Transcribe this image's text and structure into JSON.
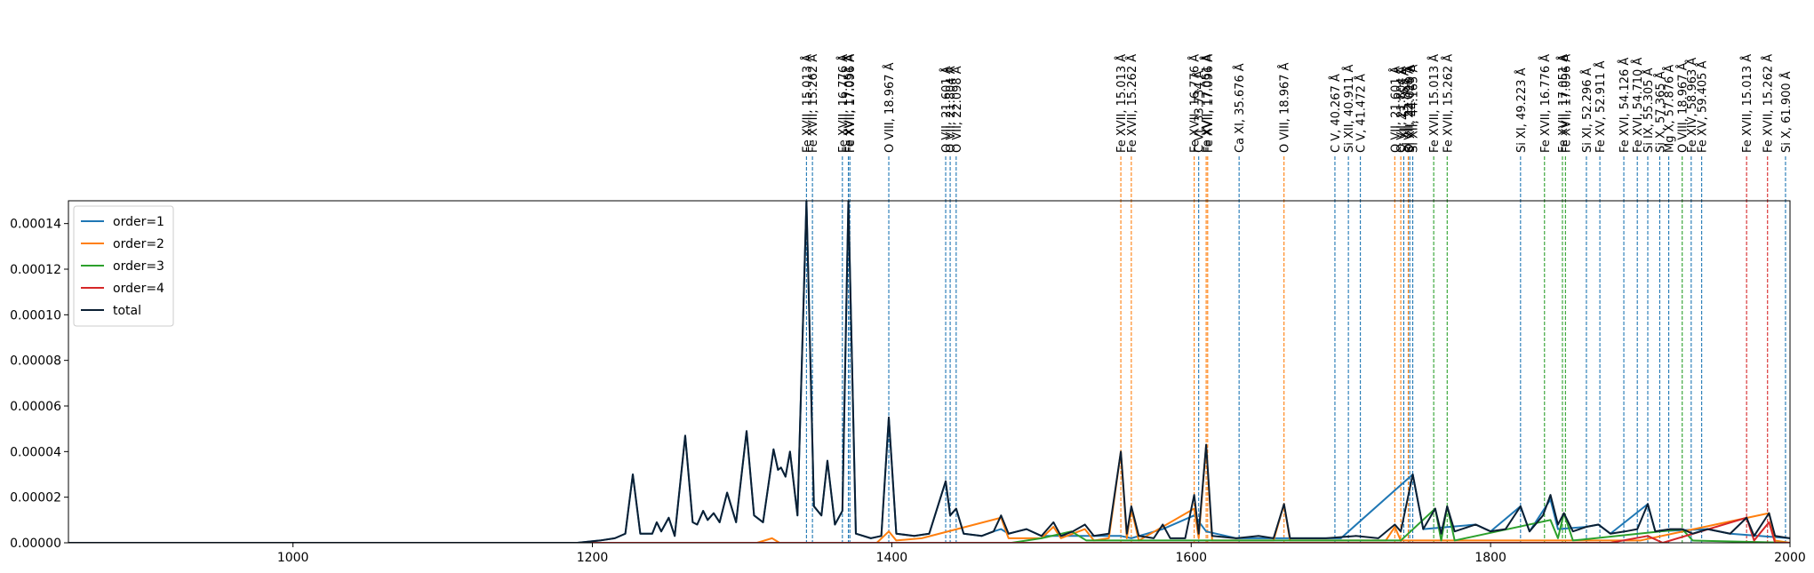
{
  "chart_data": {
    "type": "line",
    "xlim": [
      850,
      2000
    ],
    "xticks": [
      1000,
      1200,
      1400,
      1600,
      1800,
      2000
    ],
    "ylim": [
      0,
      0.00015
    ],
    "yticks": [
      {
        "value": 0,
        "label": "0.00000"
      },
      {
        "value": 2e-05,
        "label": "0.00002"
      },
      {
        "value": 4e-05,
        "label": "0.00004"
      },
      {
        "value": 6e-05,
        "label": "0.00006"
      },
      {
        "value": 8e-05,
        "label": "0.00008"
      },
      {
        "value": 0.0001,
        "label": "0.00010"
      },
      {
        "value": 0.00012,
        "label": "0.00012"
      },
      {
        "value": 0.00014,
        "label": "0.00014"
      }
    ],
    "legend": "upper left",
    "series": [
      {
        "name": "order=1",
        "color": "#1f77b4",
        "x": [
          850,
          1190,
          1205,
          1215,
          1222,
          1227,
          1232,
          1240,
          1243,
          1246,
          1251,
          1255,
          1262,
          1267,
          1270,
          1274,
          1277,
          1281,
          1285,
          1290,
          1296,
          1303,
          1308,
          1314,
          1321,
          1324,
          1326,
          1329,
          1332,
          1337,
          1343,
          1348,
          1353,
          1357,
          1362,
          1367,
          1371,
          1376,
          1386,
          1393,
          1398,
          1403,
          1415,
          1425,
          1436,
          1439,
          1443,
          1448,
          1460,
          1468,
          1473,
          1478,
          1490,
          1500,
          1545,
          1553,
          1560,
          1581,
          1602,
          1610,
          1630,
          1662,
          1700,
          1748,
          1755,
          1790,
          1800,
          1820,
          1826,
          1840,
          1845,
          1864,
          1872,
          1880,
          1905,
          1910,
          1945,
          1960,
          2000
        ],
        "values": [
          0,
          0,
          1e-06,
          2e-06,
          4e-06,
          3e-05,
          4e-06,
          4e-06,
          9e-06,
          5e-06,
          1.1e-05,
          3e-06,
          4.7e-05,
          9e-06,
          8e-06,
          1.4e-05,
          1e-05,
          1.3e-05,
          9e-06,
          2.2e-05,
          9e-06,
          4.9e-05,
          1.2e-05,
          9e-06,
          4.1e-05,
          3.2e-05,
          3.3e-05,
          2.9e-05,
          4e-05,
          1.2e-05,
          0.00015,
          1.6e-05,
          1.2e-05,
          3.6e-05,
          8e-06,
          1.4e-05,
          0.00015,
          4e-06,
          2e-06,
          3e-06,
          5.5e-05,
          4e-06,
          3e-06,
          4e-06,
          2.7e-05,
          1.2e-05,
          1.5e-05,
          4e-06,
          3e-06,
          5e-06,
          6e-06,
          4e-06,
          6e-06,
          3e-06,
          3e-06,
          3e-06,
          2e-06,
          6e-06,
          1.2e-05,
          5e-06,
          2e-06,
          2e-06,
          2e-06,
          3e-05,
          6e-06,
          8e-06,
          5e-06,
          1.6e-05,
          5e-06,
          1.9e-05,
          6e-06,
          7e-06,
          8e-06,
          4e-06,
          1.7e-05,
          5e-06,
          6e-06,
          4e-06,
          2e-06
        ]
      },
      {
        "name": "order=2",
        "color": "#ff7f0e",
        "x": [
          850,
          1310,
          1320,
          1325,
          1390,
          1398,
          1403,
          1420,
          1473,
          1478,
          1500,
          1508,
          1513,
          1529,
          1535,
          1545,
          1553,
          1557,
          1560,
          1565,
          1602,
          1605,
          1610,
          1614,
          1655,
          1662,
          1666,
          1730,
          1736,
          1740,
          1900,
          1986,
          1990,
          2000
        ],
        "values": [
          0,
          0,
          2e-06,
          0,
          0,
          5e-06,
          1e-06,
          2e-06,
          1.1e-05,
          2e-06,
          2e-06,
          7e-06,
          2e-06,
          6e-06,
          1e-06,
          2e-06,
          4e-05,
          2e-06,
          1.5e-05,
          1e-06,
          1.5e-05,
          2e-06,
          4.3e-05,
          1e-06,
          1e-06,
          1.7e-05,
          1e-06,
          1e-06,
          7e-06,
          1e-06,
          1e-06,
          1.3e-05,
          1e-06,
          0
        ]
      },
      {
        "name": "order=3",
        "color": "#2ca02c",
        "x": [
          850,
          1480,
          1500,
          1520,
          1530,
          1740,
          1763,
          1767,
          1771,
          1776,
          1840,
          1845,
          1849,
          1855,
          1928,
          1935,
          2000
        ],
        "values": [
          0,
          0,
          2e-06,
          5e-06,
          1e-06,
          1e-06,
          1.5e-05,
          1e-06,
          1.6e-05,
          1e-06,
          1e-05,
          2e-06,
          1.3e-05,
          1e-06,
          6e-06,
          1e-06,
          0
        ]
      },
      {
        "name": "order=4",
        "color": "#d62728",
        "x": [
          850,
          1880,
          1905,
          1915,
          1971,
          1976,
          1986,
          1990,
          2000
        ],
        "values": [
          0,
          0,
          3e-06,
          0,
          1.1e-05,
          1e-06,
          9e-06,
          0,
          0
        ]
      },
      {
        "name": "total",
        "color": "#0b1f33",
        "x": [
          850,
          1190,
          1205,
          1215,
          1222,
          1227,
          1232,
          1240,
          1243,
          1246,
          1251,
          1255,
          1262,
          1267,
          1270,
          1274,
          1277,
          1281,
          1285,
          1290,
          1296,
          1303,
          1308,
          1314,
          1321,
          1324,
          1326,
          1329,
          1332,
          1337,
          1343,
          1348,
          1353,
          1357,
          1362,
          1367,
          1371,
          1376,
          1386,
          1393,
          1398,
          1403,
          1415,
          1425,
          1436,
          1439,
          1443,
          1448,
          1460,
          1468,
          1473,
          1478,
          1490,
          1500,
          1508,
          1513,
          1521,
          1529,
          1535,
          1545,
          1553,
          1557,
          1560,
          1565,
          1575,
          1581,
          1586,
          1596,
          1602,
          1605,
          1610,
          1614,
          1630,
          1645,
          1655,
          1662,
          1666,
          1690,
          1710,
          1725,
          1736,
          1740,
          1748,
          1755,
          1763,
          1767,
          1771,
          1776,
          1790,
          1800,
          1810,
          1820,
          1826,
          1835,
          1840,
          1845,
          1849,
          1855,
          1864,
          1872,
          1880,
          1890,
          1898,
          1905,
          1910,
          1920,
          1928,
          1935,
          1945,
          1960,
          1971,
          1976,
          1986,
          1990,
          2000
        ],
        "values": [
          0,
          0,
          1e-06,
          2e-06,
          4e-06,
          3e-05,
          4e-06,
          4e-06,
          9e-06,
          5e-06,
          1.1e-05,
          3e-06,
          4.7e-05,
          9e-06,
          8e-06,
          1.4e-05,
          1e-05,
          1.3e-05,
          9e-06,
          2.2e-05,
          9e-06,
          4.9e-05,
          1.2e-05,
          9e-06,
          4.1e-05,
          3.2e-05,
          3.3e-05,
          2.9e-05,
          4e-05,
          1.2e-05,
          0.00015,
          1.6e-05,
          1.2e-05,
          3.6e-05,
          8e-06,
          1.4e-05,
          0.00015,
          4e-06,
          2e-06,
          3e-06,
          5.5e-05,
          4e-06,
          3e-06,
          4e-06,
          2.7e-05,
          1.2e-05,
          1.5e-05,
          4e-06,
          3e-06,
          5e-06,
          1.2e-05,
          4e-06,
          6e-06,
          3e-06,
          9e-06,
          3e-06,
          5e-06,
          8e-06,
          3e-06,
          4e-06,
          4e-05,
          4e-06,
          1.6e-05,
          3e-06,
          2e-06,
          8e-06,
          2e-06,
          2e-06,
          2.1e-05,
          4e-06,
          4.3e-05,
          3e-06,
          2e-06,
          3e-06,
          2e-06,
          1.7e-05,
          2e-06,
          2e-06,
          3e-06,
          2e-06,
          8e-06,
          5e-06,
          3e-05,
          6e-06,
          1.5e-05,
          4e-06,
          1.6e-05,
          5e-06,
          8e-06,
          5e-06,
          6e-06,
          1.6e-05,
          5e-06,
          1.2e-05,
          2.1e-05,
          8e-06,
          1.3e-05,
          5e-06,
          7e-06,
          8e-06,
          4e-06,
          5e-06,
          6e-06,
          1.7e-05,
          5e-06,
          6e-06,
          6e-06,
          4e-06,
          6e-06,
          4e-06,
          1.1e-05,
          3e-06,
          1.3e-05,
          3e-06,
          2e-06
        ]
      }
    ],
    "annotations": [
      {
        "label": "Fe XVII, 15.013 Å",
        "x": 1343,
        "color": "#1f77b4"
      },
      {
        "label": "Fe XVII, 15.262 Å",
        "x": 1347,
        "color": "#1f77b4"
      },
      {
        "label": "Fe XVII, 16.776 Å",
        "x": 1367,
        "color": "#1f77b4"
      },
      {
        "label": "Fe XVII, 17.051 Å",
        "x": 1371,
        "color": "#1f77b4"
      },
      {
        "label": "Fe XVII, 17.096 Å",
        "x": 1372,
        "color": "#1f77b4"
      },
      {
        "label": "O VIII, 18.967 Å",
        "x": 1398,
        "color": "#1f77b4"
      },
      {
        "label": "O VII, 21.601 Å",
        "x": 1436,
        "color": "#1f77b4"
      },
      {
        "label": "O VII, 21.804 Å",
        "x": 1439,
        "color": "#1f77b4"
      },
      {
        "label": "O VII, 22.098 Å",
        "x": 1443,
        "color": "#1f77b4"
      },
      {
        "label": "C VI, 33.734 Å",
        "x": 1605,
        "color": "#1f77b4"
      },
      {
        "label": "Ca XI, 35.676 Å",
        "x": 1632,
        "color": "#1f77b4"
      },
      {
        "label": "C V, 40.267 Å",
        "x": 1696,
        "color": "#1f77b4"
      },
      {
        "label": "Si XII, 40.911 Å",
        "x": 1705,
        "color": "#1f77b4"
      },
      {
        "label": "C V, 41.472 Å",
        "x": 1713,
        "color": "#1f77b4"
      },
      {
        "label": "Si XI, 43.763 Å",
        "x": 1742,
        "color": "#1f77b4"
      },
      {
        "label": "Si XII, 44.019 Å",
        "x": 1746,
        "color": "#1f77b4"
      },
      {
        "label": "Si XII, 44.165 Å",
        "x": 1748,
        "color": "#1f77b4"
      },
      {
        "label": "Si XI, 49.223 Å",
        "x": 1820,
        "color": "#1f77b4"
      },
      {
        "label": "Si XI, 52.296 Å",
        "x": 1864,
        "color": "#1f77b4"
      },
      {
        "label": "Fe XV, 52.911 Å",
        "x": 1873,
        "color": "#1f77b4"
      },
      {
        "label": "Fe XVI, 54.126 Å",
        "x": 1889,
        "color": "#1f77b4"
      },
      {
        "label": "Fe XVI, 54.710 Å",
        "x": 1898,
        "color": "#1f77b4"
      },
      {
        "label": "Si IX, 55.305 Å",
        "x": 1905,
        "color": "#1f77b4"
      },
      {
        "label": "Si X, 57.365 Å",
        "x": 1913,
        "color": "#1f77b4"
      },
      {
        "label": "Mg X, 57.876 Å",
        "x": 1919,
        "color": "#1f77b4"
      },
      {
        "label": "Fe XIV, 58.963 Å",
        "x": 1934,
        "color": "#1f77b4"
      },
      {
        "label": "Fe XV, 59.405 Å",
        "x": 1941,
        "color": "#1f77b4"
      },
      {
        "label": "Si X, 61.900 Å",
        "x": 1997,
        "color": "#1f77b4"
      },
      {
        "label": "Fe XVII, 15.013 Å",
        "x": 1553,
        "color": "#ff7f0e"
      },
      {
        "label": "Fe XVII, 15.262 Å",
        "x": 1560,
        "color": "#ff7f0e"
      },
      {
        "label": "Fe XVII, 16.776 Å",
        "x": 1602,
        "color": "#ff7f0e"
      },
      {
        "label": "Fe XVII, 17.051 Å",
        "x": 1610,
        "color": "#ff7f0e"
      },
      {
        "label": "Fe XVII, 17.096 Å",
        "x": 1611,
        "color": "#ff7f0e"
      },
      {
        "label": "O VIII, 18.967 Å",
        "x": 1662,
        "color": "#ff7f0e"
      },
      {
        "label": "O VII, 21.601 Å",
        "x": 1736,
        "color": "#ff7f0e"
      },
      {
        "label": "O VII, 21.804 Å",
        "x": 1740,
        "color": "#ff7f0e"
      },
      {
        "label": "O VII, 22.098 Å",
        "x": 1745,
        "color": "#ff7f0e"
      },
      {
        "label": "Fe XVII, 15.013 Å",
        "x": 1762,
        "color": "#2ca02c"
      },
      {
        "label": "Fe XVII, 15.262 Å",
        "x": 1771,
        "color": "#2ca02c"
      },
      {
        "label": "Fe XVII, 16.776 Å",
        "x": 1836,
        "color": "#2ca02c"
      },
      {
        "label": "Fe XVII, 17.051 Å",
        "x": 1848,
        "color": "#2ca02c"
      },
      {
        "label": "Fe XVII, 17.096 Å",
        "x": 1850,
        "color": "#2ca02c"
      },
      {
        "label": "O VIII, 18.967 Å",
        "x": 1928,
        "color": "#2ca02c"
      },
      {
        "label": "Fe XVII, 15.013 Å",
        "x": 1971,
        "color": "#d62728"
      },
      {
        "label": "Fe XVII, 15.262 Å",
        "x": 1985,
        "color": "#d62728"
      }
    ]
  }
}
